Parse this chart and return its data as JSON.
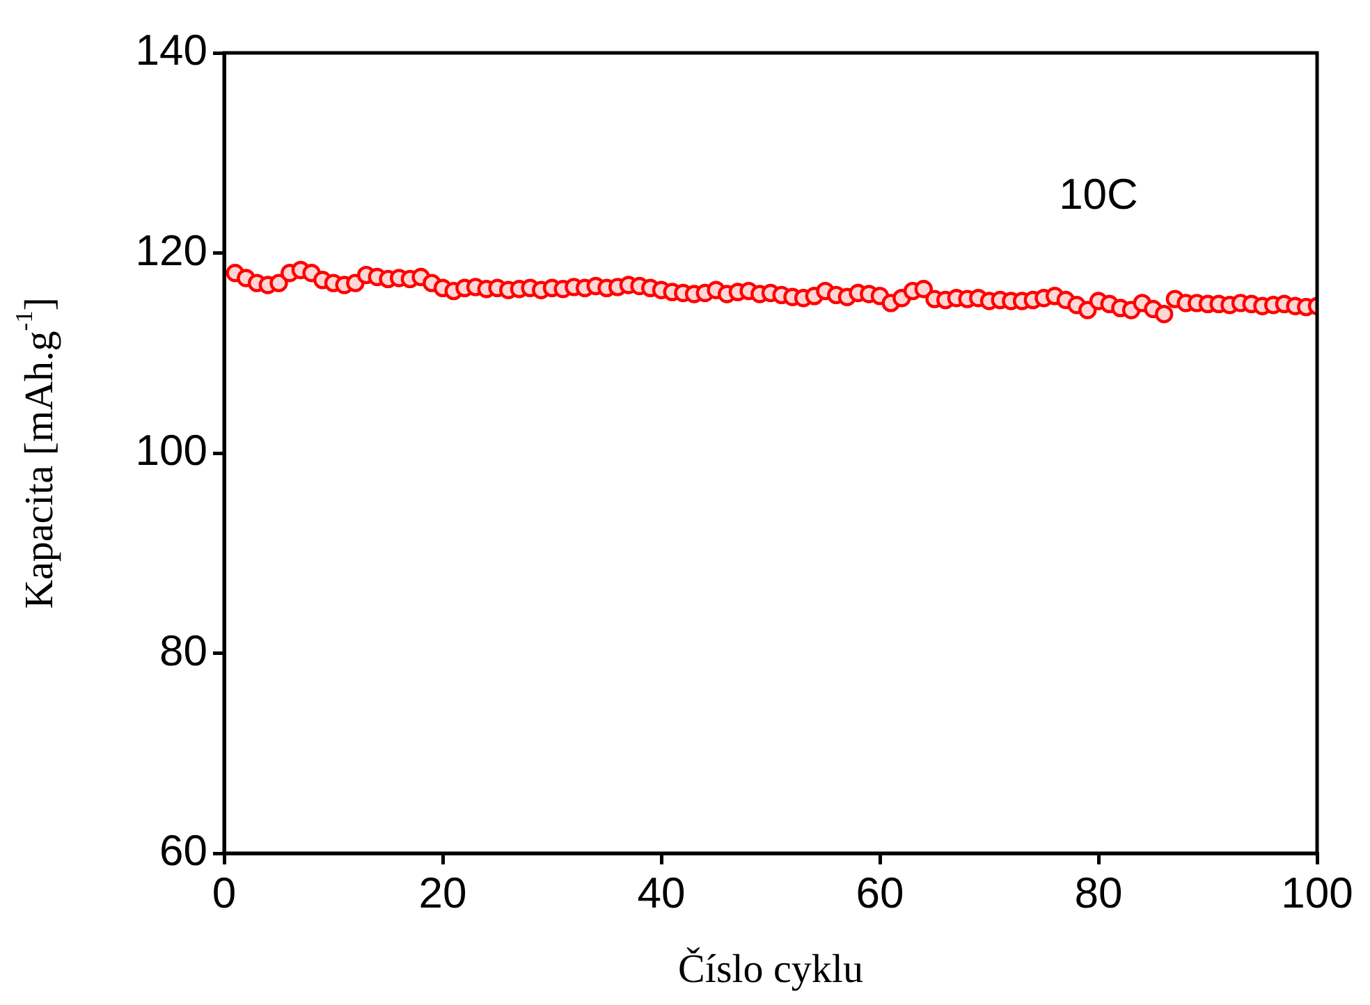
{
  "chart_data": {
    "type": "scatter",
    "xlabel": "Číslo cyklu",
    "ylabel": "Kapacita [mAh.g$^{-1}$]",
    "annotations": [
      "10C"
    ],
    "xlim": [
      0,
      100
    ],
    "xticks": [
      0,
      20,
      40,
      60,
      80,
      100
    ],
    "ylim": [
      60,
      140
    ],
    "yticks": [
      60,
      80,
      100,
      120,
      140
    ],
    "grid": false,
    "legend": false,
    "marker": "circle",
    "series": [
      {
        "color": "#ff0000",
        "x": [
          1,
          2,
          3,
          4,
          5,
          6,
          7,
          8,
          9,
          10,
          11,
          12,
          13,
          14,
          15,
          16,
          17,
          18,
          19,
          20,
          21,
          22,
          23,
          24,
          25,
          26,
          27,
          28,
          29,
          30,
          31,
          32,
          33,
          34,
          35,
          36,
          37,
          38,
          39,
          40,
          41,
          42,
          43,
          44,
          45,
          46,
          47,
          48,
          49,
          50,
          51,
          52,
          53,
          54,
          55,
          56,
          57,
          58,
          59,
          60,
          61,
          62,
          63,
          64,
          65,
          66,
          67,
          68,
          69,
          70,
          71,
          72,
          73,
          74,
          75,
          76,
          77,
          78,
          79,
          80,
          81,
          82,
          83,
          84,
          85,
          86,
          87,
          88,
          89,
          90,
          91,
          92,
          93,
          94,
          95,
          96,
          97,
          98,
          99,
          100
        ],
        "values": [
          118,
          117.5,
          117,
          116.8,
          117,
          118,
          118.3,
          118,
          117.3,
          117,
          116.8,
          117,
          117.8,
          117.6,
          117.4,
          117.5,
          117.4,
          117.6,
          117,
          116.5,
          116.2,
          116.5,
          116.6,
          116.4,
          116.5,
          116.3,
          116.4,
          116.5,
          116.3,
          116.5,
          116.4,
          116.6,
          116.5,
          116.7,
          116.5,
          116.6,
          116.8,
          116.7,
          116.5,
          116.3,
          116.1,
          116,
          115.9,
          116,
          116.3,
          115.9,
          116.1,
          116.2,
          115.9,
          116,
          115.8,
          115.6,
          115.5,
          115.7,
          116.2,
          115.8,
          115.6,
          116,
          115.9,
          115.7,
          115,
          115.5,
          116.2,
          116.4,
          115.4,
          115.3,
          115.5,
          115.4,
          115.5,
          115.2,
          115.3,
          115.2,
          115.2,
          115.3,
          115.5,
          115.7,
          115.3,
          114.8,
          114.3,
          115.2,
          114.9,
          114.5,
          114.3,
          115,
          114.4,
          113.9,
          115.4,
          115,
          115,
          114.9,
          114.9,
          114.8,
          115,
          114.9,
          114.7,
          114.8,
          114.9,
          114.7,
          114.6,
          114.7
        ]
      }
    ]
  }
}
